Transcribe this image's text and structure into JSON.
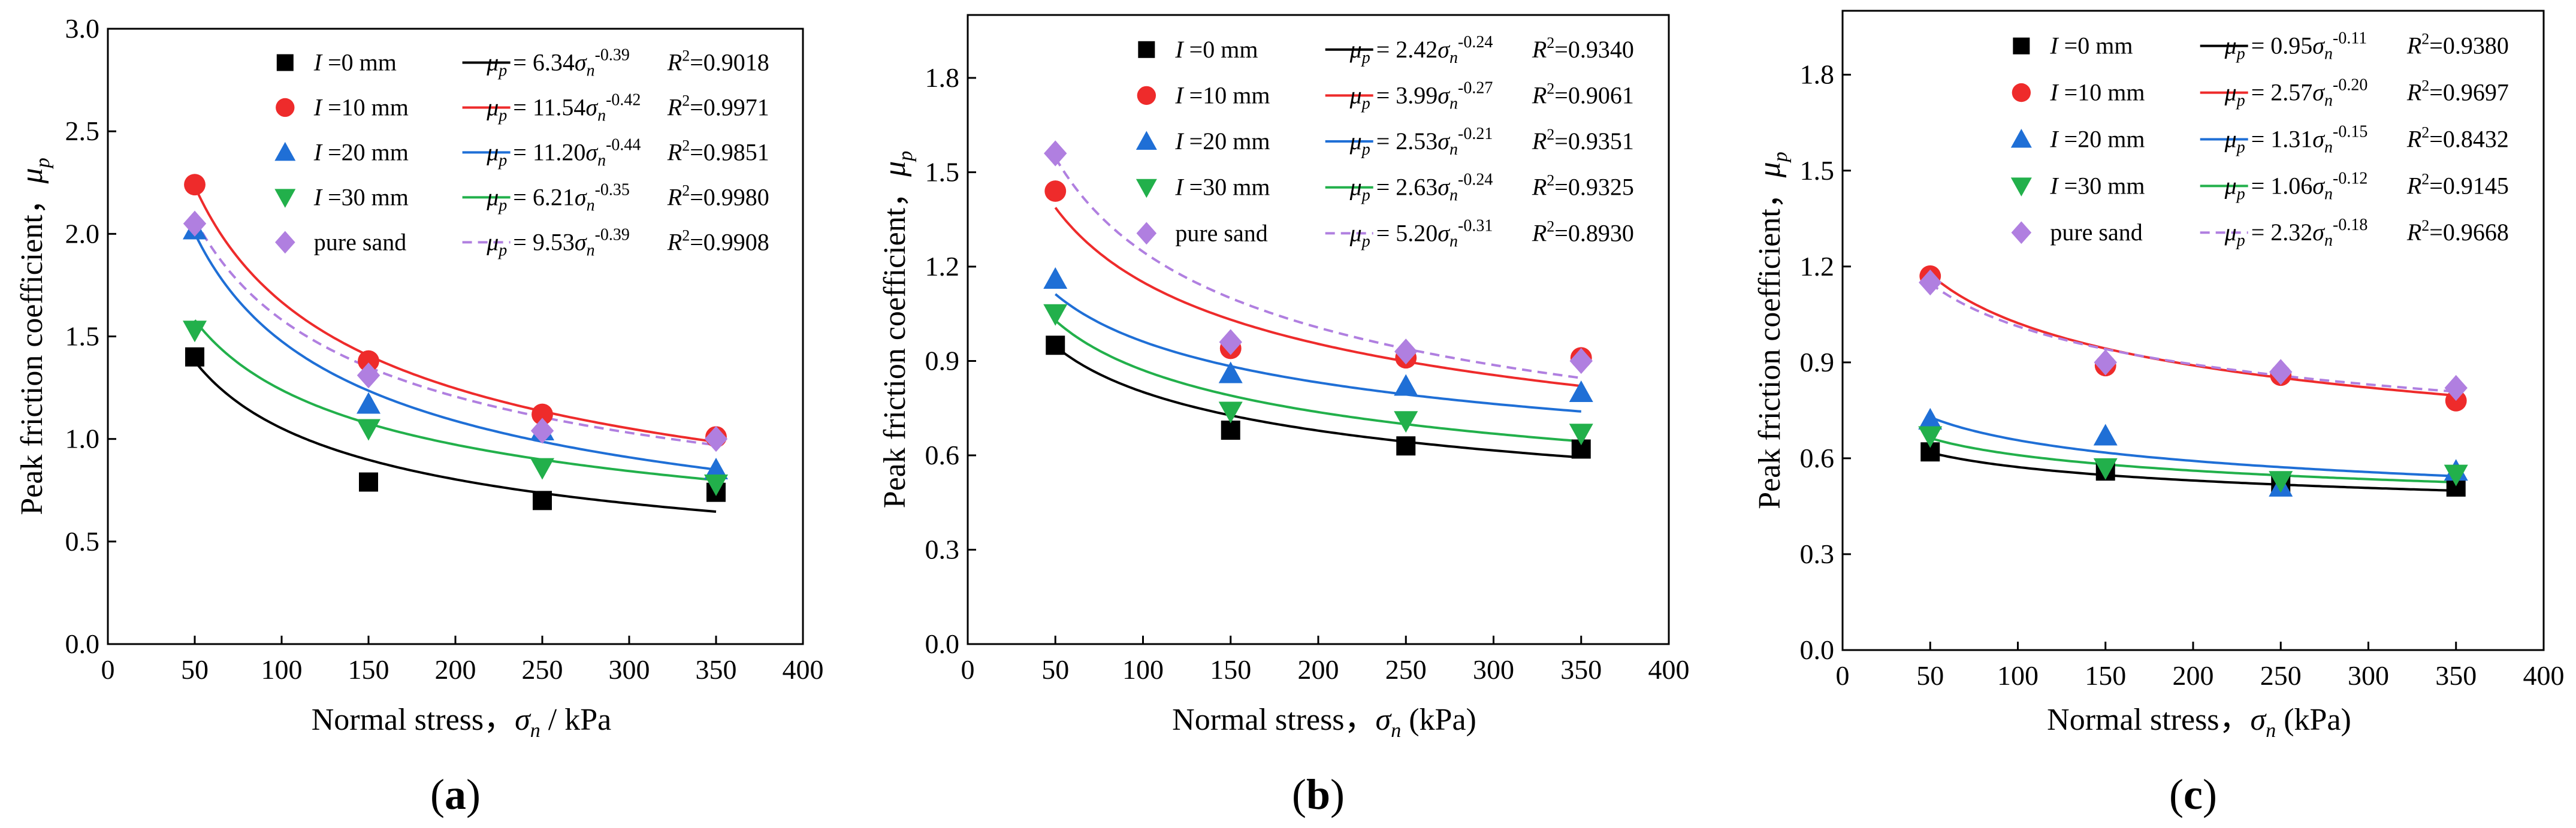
{
  "figure": {
    "panel_labels": [
      "(a)",
      "(b)",
      "(c)"
    ]
  },
  "chart_data": [
    {
      "type": "scatter",
      "panel": "a",
      "xlabel": "Normal stress，σn / kPa",
      "xlabel_parts": {
        "main": "Normal stress，",
        "sym": "σ",
        "sub": "n",
        "tail": " / kPa"
      },
      "ylabel_parts": {
        "main": "Peak friction coefficient，",
        "sym": "μ",
        "sub": "p"
      },
      "xlim": [
        0,
        400
      ],
      "ylim": [
        0,
        3.0
      ],
      "xticks": [
        0,
        50,
        100,
        150,
        200,
        250,
        300,
        350,
        400
      ],
      "yticks": [
        0.0,
        0.5,
        1.0,
        1.5,
        2.0,
        2.5,
        3.0
      ],
      "ytick_labels": [
        "0.0",
        "0.5",
        "1.0",
        "1.5",
        "2.0",
        "2.5",
        "3.0"
      ],
      "grid": false,
      "legend_placement": "top-right",
      "series": [
        {
          "name": "I =0 mm",
          "id": "I-0mm",
          "color": "#000000",
          "marker": "square",
          "dash": false,
          "x": [
            50,
            150,
            250,
            350
          ],
          "y": [
            1.4,
            0.79,
            0.7,
            0.74
          ],
          "fit": {
            "a": 6.34,
            "b": -0.39
          },
          "eq_coef": "6.34",
          "eq_exp": "-0.39",
          "r2": "0.9018"
        },
        {
          "name": "I =10 mm",
          "id": "I-10mm",
          "color": "#ee2b2b",
          "marker": "circle",
          "dash": false,
          "x": [
            50,
            150,
            250,
            350
          ],
          "y": [
            2.24,
            1.38,
            1.12,
            1.01
          ],
          "fit": {
            "a": 11.54,
            "b": -0.42
          },
          "eq_coef": "11.54",
          "eq_exp": "-0.42",
          "r2": "0.9971"
        },
        {
          "name": "I =20 mm",
          "id": "I-20mm",
          "color": "#1f6fd6",
          "marker": "triangle-up",
          "dash": false,
          "x": [
            50,
            150,
            250,
            350
          ],
          "y": [
            2.02,
            1.17,
            1.04,
            0.85
          ],
          "fit": {
            "a": 11.2,
            "b": -0.44
          },
          "eq_coef": "11.20",
          "eq_exp": "-0.44",
          "r2": "0.9851"
        },
        {
          "name": "I =30 mm",
          "id": "I-30mm",
          "color": "#22b04b",
          "marker": "triangle-down",
          "dash": false,
          "x": [
            50,
            150,
            250,
            350
          ],
          "y": [
            1.53,
            1.05,
            0.86,
            0.78
          ],
          "fit": {
            "a": 6.21,
            "b": -0.35
          },
          "eq_coef": "6.21",
          "eq_exp": "-0.35",
          "r2": "0.9980"
        },
        {
          "name": "pure sand",
          "id": "pure-sand",
          "color": "#b07fe0",
          "marker": "diamond",
          "dash": true,
          "x": [
            50,
            150,
            250,
            350
          ],
          "y": [
            2.05,
            1.31,
            1.04,
            1.0
          ],
          "fit": {
            "a": 9.53,
            "b": -0.39
          },
          "eq_coef": " 9.53",
          "eq_exp": "-0.39",
          "r2": "0.9908"
        }
      ]
    },
    {
      "type": "scatter",
      "panel": "b",
      "xlabel": "Normal stress，σn (kPa)",
      "xlabel_parts": {
        "main": "Normal stress，",
        "sym": "σ",
        "sub": "n",
        "tail": " (kPa)"
      },
      "ylabel_parts": {
        "main": "Peak friction coefficient，",
        "sym": "μ",
        "sub": "p"
      },
      "xlim": [
        0,
        400
      ],
      "ylim": [
        0,
        2.0
      ],
      "xticks": [
        0,
        50,
        100,
        150,
        200,
        250,
        300,
        350,
        400
      ],
      "yticks": [
        0.0,
        0.3,
        0.6,
        0.9,
        1.2,
        1.5,
        1.8
      ],
      "ytick_labels": [
        "0.0",
        "0.3",
        "0.6",
        "0.9",
        "1.2",
        "1.5",
        "1.8"
      ],
      "grid": false,
      "legend_placement": "top-right",
      "series": [
        {
          "name": "I =0 mm",
          "id": "I-0mm",
          "color": "#000000",
          "marker": "square",
          "dash": false,
          "x": [
            50,
            150,
            250,
            350
          ],
          "y": [
            0.95,
            0.68,
            0.63,
            0.62
          ],
          "fit": {
            "a": 2.42,
            "b": -0.24
          },
          "eq_coef": "2.42",
          "eq_exp": "-0.24",
          "r2": "0.9340"
        },
        {
          "name": "I =10 mm",
          "id": "I-10mm",
          "color": "#ee2b2b",
          "marker": "circle",
          "dash": false,
          "x": [
            50,
            150,
            250,
            350
          ],
          "y": [
            1.44,
            0.94,
            0.91,
            0.91
          ],
          "fit": {
            "a": 3.99,
            "b": -0.27
          },
          "eq_coef": "3.99",
          "eq_exp": "-0.27",
          "r2": "0.9061"
        },
        {
          "name": "I =20 mm",
          "id": "I-20mm",
          "color": "#1f6fd6",
          "marker": "triangle-up",
          "dash": false,
          "x": [
            50,
            150,
            250,
            350
          ],
          "y": [
            1.16,
            0.86,
            0.82,
            0.8
          ],
          "fit": {
            "a": 2.53,
            "b": -0.21
          },
          "eq_coef": "2.53",
          "eq_exp": "-0.21",
          "r2": "0.9351"
        },
        {
          "name": "I =30 mm",
          "id": "I-30mm",
          "color": "#22b04b",
          "marker": "triangle-down",
          "dash": false,
          "x": [
            50,
            150,
            250,
            350
          ],
          "y": [
            1.05,
            0.74,
            0.71,
            0.67
          ],
          "fit": {
            "a": 2.63,
            "b": -0.24
          },
          "eq_coef": "2.63",
          "eq_exp": "-0.24",
          "r2": "0.9325"
        },
        {
          "name": "pure sand",
          "id": "pure-sand",
          "color": "#b07fe0",
          "marker": "diamond",
          "dash": true,
          "x": [
            50,
            150,
            250,
            350
          ],
          "y": [
            1.56,
            0.96,
            0.93,
            0.9
          ],
          "fit": {
            "a": 5.2,
            "b": -0.31
          },
          "eq_coef": "5.20",
          "eq_exp": "-0.31",
          "r2": "0.8930"
        }
      ]
    },
    {
      "type": "scatter",
      "panel": "c",
      "xlabel": "Normal stress，σn (kPa)",
      "xlabel_parts": {
        "main": "Normal stress，",
        "sym": "σ",
        "sub": "n",
        "tail": " (kPa)"
      },
      "ylabel_parts": {
        "main": "Peak friction coefficient，",
        "sym": "μ",
        "sub": "p"
      },
      "xlim": [
        0,
        400
      ],
      "ylim": [
        0,
        2.0
      ],
      "xticks": [
        0,
        50,
        100,
        150,
        200,
        250,
        300,
        350,
        400
      ],
      "yticks": [
        0.0,
        0.3,
        0.6,
        0.9,
        1.2,
        1.5,
        1.8
      ],
      "ytick_labels": [
        "0.0",
        "0.3",
        "0.6",
        "0.9",
        "1.2",
        "1.5",
        "1.8"
      ],
      "grid": false,
      "legend_placement": "top-right",
      "series": [
        {
          "name": "I =0 mm",
          "id": "I-0mm",
          "color": "#000000",
          "marker": "square",
          "dash": false,
          "x": [
            50,
            150,
            250,
            350
          ],
          "y": [
            0.62,
            0.56,
            0.52,
            0.51
          ],
          "fit": {
            "a": 0.95,
            "b": -0.11
          },
          "eq_coef": "0.95",
          "eq_exp": "-0.11",
          "r2": "0.9380"
        },
        {
          "name": "I =10 mm",
          "id": "I-10mm",
          "color": "#ee2b2b",
          "marker": "circle",
          "dash": false,
          "x": [
            50,
            150,
            250,
            350
          ],
          "y": [
            1.17,
            0.89,
            0.86,
            0.78
          ],
          "fit": {
            "a": 2.57,
            "b": -0.2
          },
          "eq_coef": "2.57",
          "eq_exp": "-0.20",
          "r2": "0.9697"
        },
        {
          "name": "I =20 mm",
          "id": "I-20mm",
          "color": "#1f6fd6",
          "marker": "triangle-up",
          "dash": false,
          "x": [
            50,
            150,
            250,
            350
          ],
          "y": [
            0.72,
            0.67,
            0.51,
            0.56
          ],
          "fit": {
            "a": 1.31,
            "b": -0.15
          },
          "eq_coef": "1.31",
          "eq_exp": "-0.15",
          "r2": "0.8432"
        },
        {
          "name": "I =30 mm",
          "id": "I-30mm",
          "color": "#22b04b",
          "marker": "triangle-down",
          "dash": false,
          "x": [
            50,
            150,
            250,
            350
          ],
          "y": [
            0.67,
            0.57,
            0.53,
            0.55
          ],
          "fit": {
            "a": 1.06,
            "b": -0.12
          },
          "eq_coef": "1.06",
          "eq_exp": "-0.12",
          "r2": "0.9145"
        },
        {
          "name": "pure sand",
          "id": "pure-sand",
          "color": "#b07fe0",
          "marker": "diamond",
          "dash": true,
          "x": [
            50,
            150,
            250,
            350
          ],
          "y": [
            1.15,
            0.9,
            0.87,
            0.82
          ],
          "fit": {
            "a": 2.32,
            "b": -0.18
          },
          "eq_coef": "2.32",
          "eq_exp": "-0.18",
          "r2": "0.9668"
        }
      ]
    }
  ]
}
